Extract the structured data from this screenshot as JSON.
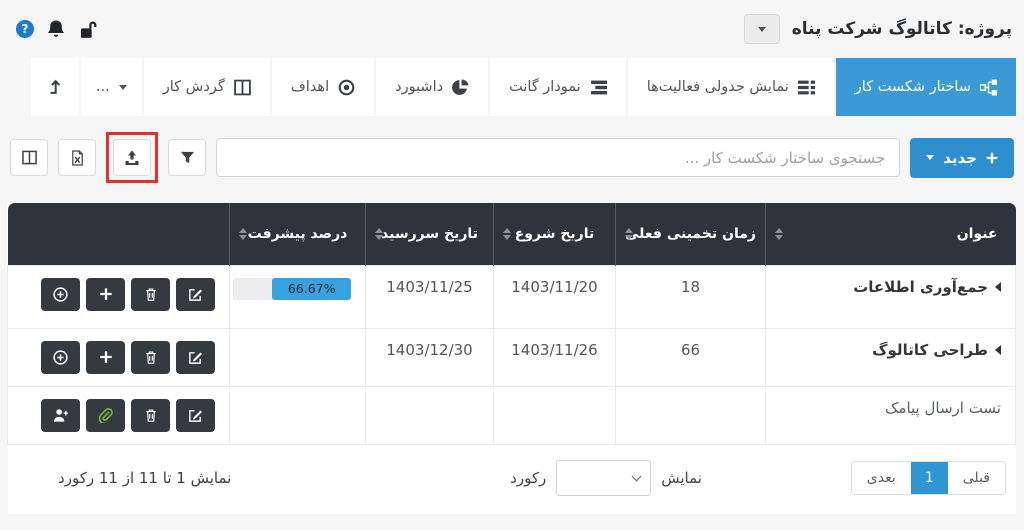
{
  "topbar": {
    "project_title": "پروژه: کاتالوگ شرکت پناه",
    "icons": [
      "help-icon",
      "bell-icon",
      "unlock-icon"
    ]
  },
  "tabs": [
    {
      "label": "ساختار شکست کار",
      "icon": "hierarchy-icon",
      "active": true
    },
    {
      "label": "نمایش جدولی فعالیت‌ها",
      "icon": "list-icon",
      "active": false
    },
    {
      "label": "نمودار گانت",
      "icon": "gantt-icon",
      "active": false
    },
    {
      "label": "داشبورد",
      "icon": "pie-chart-icon",
      "active": false
    },
    {
      "label": "اهداف",
      "icon": "target-icon",
      "active": false
    },
    {
      "label": "گردش کار",
      "icon": "columns-icon",
      "active": false
    },
    {
      "label": "...",
      "icon": "caret-down-icon",
      "active": false
    },
    {
      "label": "",
      "icon": "level-up-icon",
      "active": false
    }
  ],
  "toolbar": {
    "new_label": "جدید",
    "search_placeholder": "جستجوی ساختار شکست کار ...",
    "icon_buttons": [
      "filter-icon",
      "upload-icon",
      "file-excel-icon",
      "columns-icon"
    ],
    "highlighted_button": "upload-icon",
    "annotation_color": "#e5312b"
  },
  "table": {
    "columns": [
      {
        "label": "عنوان",
        "sortable": true
      },
      {
        "label": "زمان تخمینی فعلی",
        "sortable": true
      },
      {
        "label": "تاریخ شروع",
        "sortable": true
      },
      {
        "label": "تاریخ سررسید",
        "sortable": true
      },
      {
        "label": "درصد پیشرفت",
        "sortable": true
      },
      {
        "label": "",
        "sortable": false
      }
    ],
    "rows": [
      {
        "title": "جمع‌آوری اطلاعات",
        "expandable": true,
        "estimated_time": "18",
        "start_date": "1403/11/20",
        "due_date": "1403/11/25",
        "progress_label": "66.67%",
        "progress_value": 66.67,
        "actions": [
          "edit-icon",
          "trash-icon",
          "plus-icon",
          "circle-plus-icon"
        ]
      },
      {
        "title": "طراحی کاتالوگ",
        "expandable": true,
        "estimated_time": "66",
        "start_date": "1403/11/26",
        "due_date": "1403/12/30",
        "progress_label": "",
        "progress_value": 0,
        "actions": [
          "edit-icon",
          "trash-icon",
          "plus-icon",
          "circle-plus-icon"
        ]
      },
      {
        "title": "تست ارسال پیامک",
        "expandable": false,
        "estimated_time": "",
        "start_date": "",
        "due_date": "",
        "progress_label": "",
        "progress_value": 0,
        "actions": [
          "edit-icon",
          "trash-icon",
          "paperclip-icon",
          "person-plus-icon"
        ]
      }
    ]
  },
  "footer": {
    "prev_label": "قبلی",
    "current_page": "1",
    "next_label": "بعدی",
    "show_label": "نمایش",
    "record_label": "رکورد",
    "info": "نمایش 1 تا 11 از 11 رکورد"
  },
  "colors": {
    "accent_blue": "#3b9ad5",
    "table_header": "#2f343c",
    "action_button": "#343a40",
    "progress_fill": "#36a3e0",
    "annotation_red": "#e5312b",
    "paperclip_green": "#7cb342"
  }
}
